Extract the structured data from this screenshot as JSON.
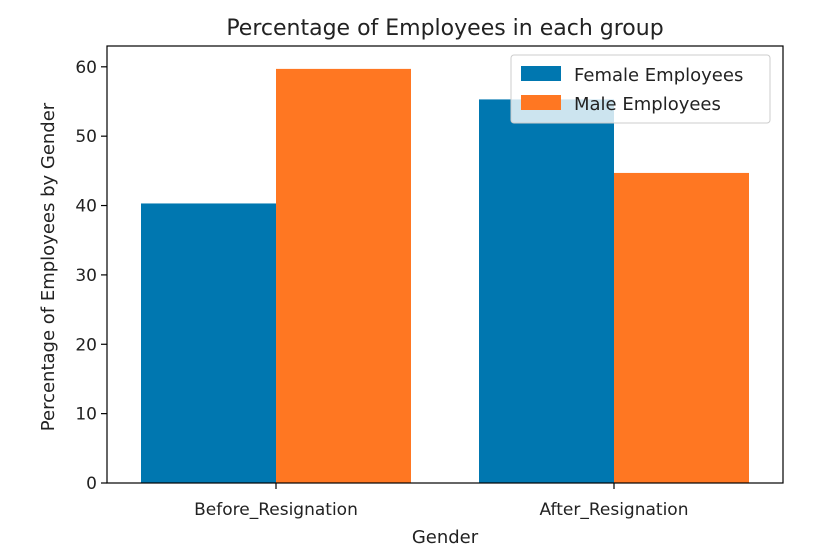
{
  "chart_data": {
    "type": "bar",
    "title": "Percentage of Employees in each group",
    "xlabel": "Gender",
    "ylabel": "Percentage of Employees by Gender",
    "categories": [
      "Before_Resignation",
      "After_Resignation"
    ],
    "series": [
      {
        "name": "Female Employees",
        "values": [
          40.3,
          55.3
        ],
        "color": "#0077b0"
      },
      {
        "name": "Male Employees",
        "values": [
          59.7,
          44.7
        ],
        "color": "#ff7722"
      }
    ],
    "ylim": [
      0,
      63
    ],
    "yticks": [
      0,
      10,
      20,
      30,
      40,
      50,
      60
    ],
    "grid": false,
    "legend_position": "top-right"
  }
}
